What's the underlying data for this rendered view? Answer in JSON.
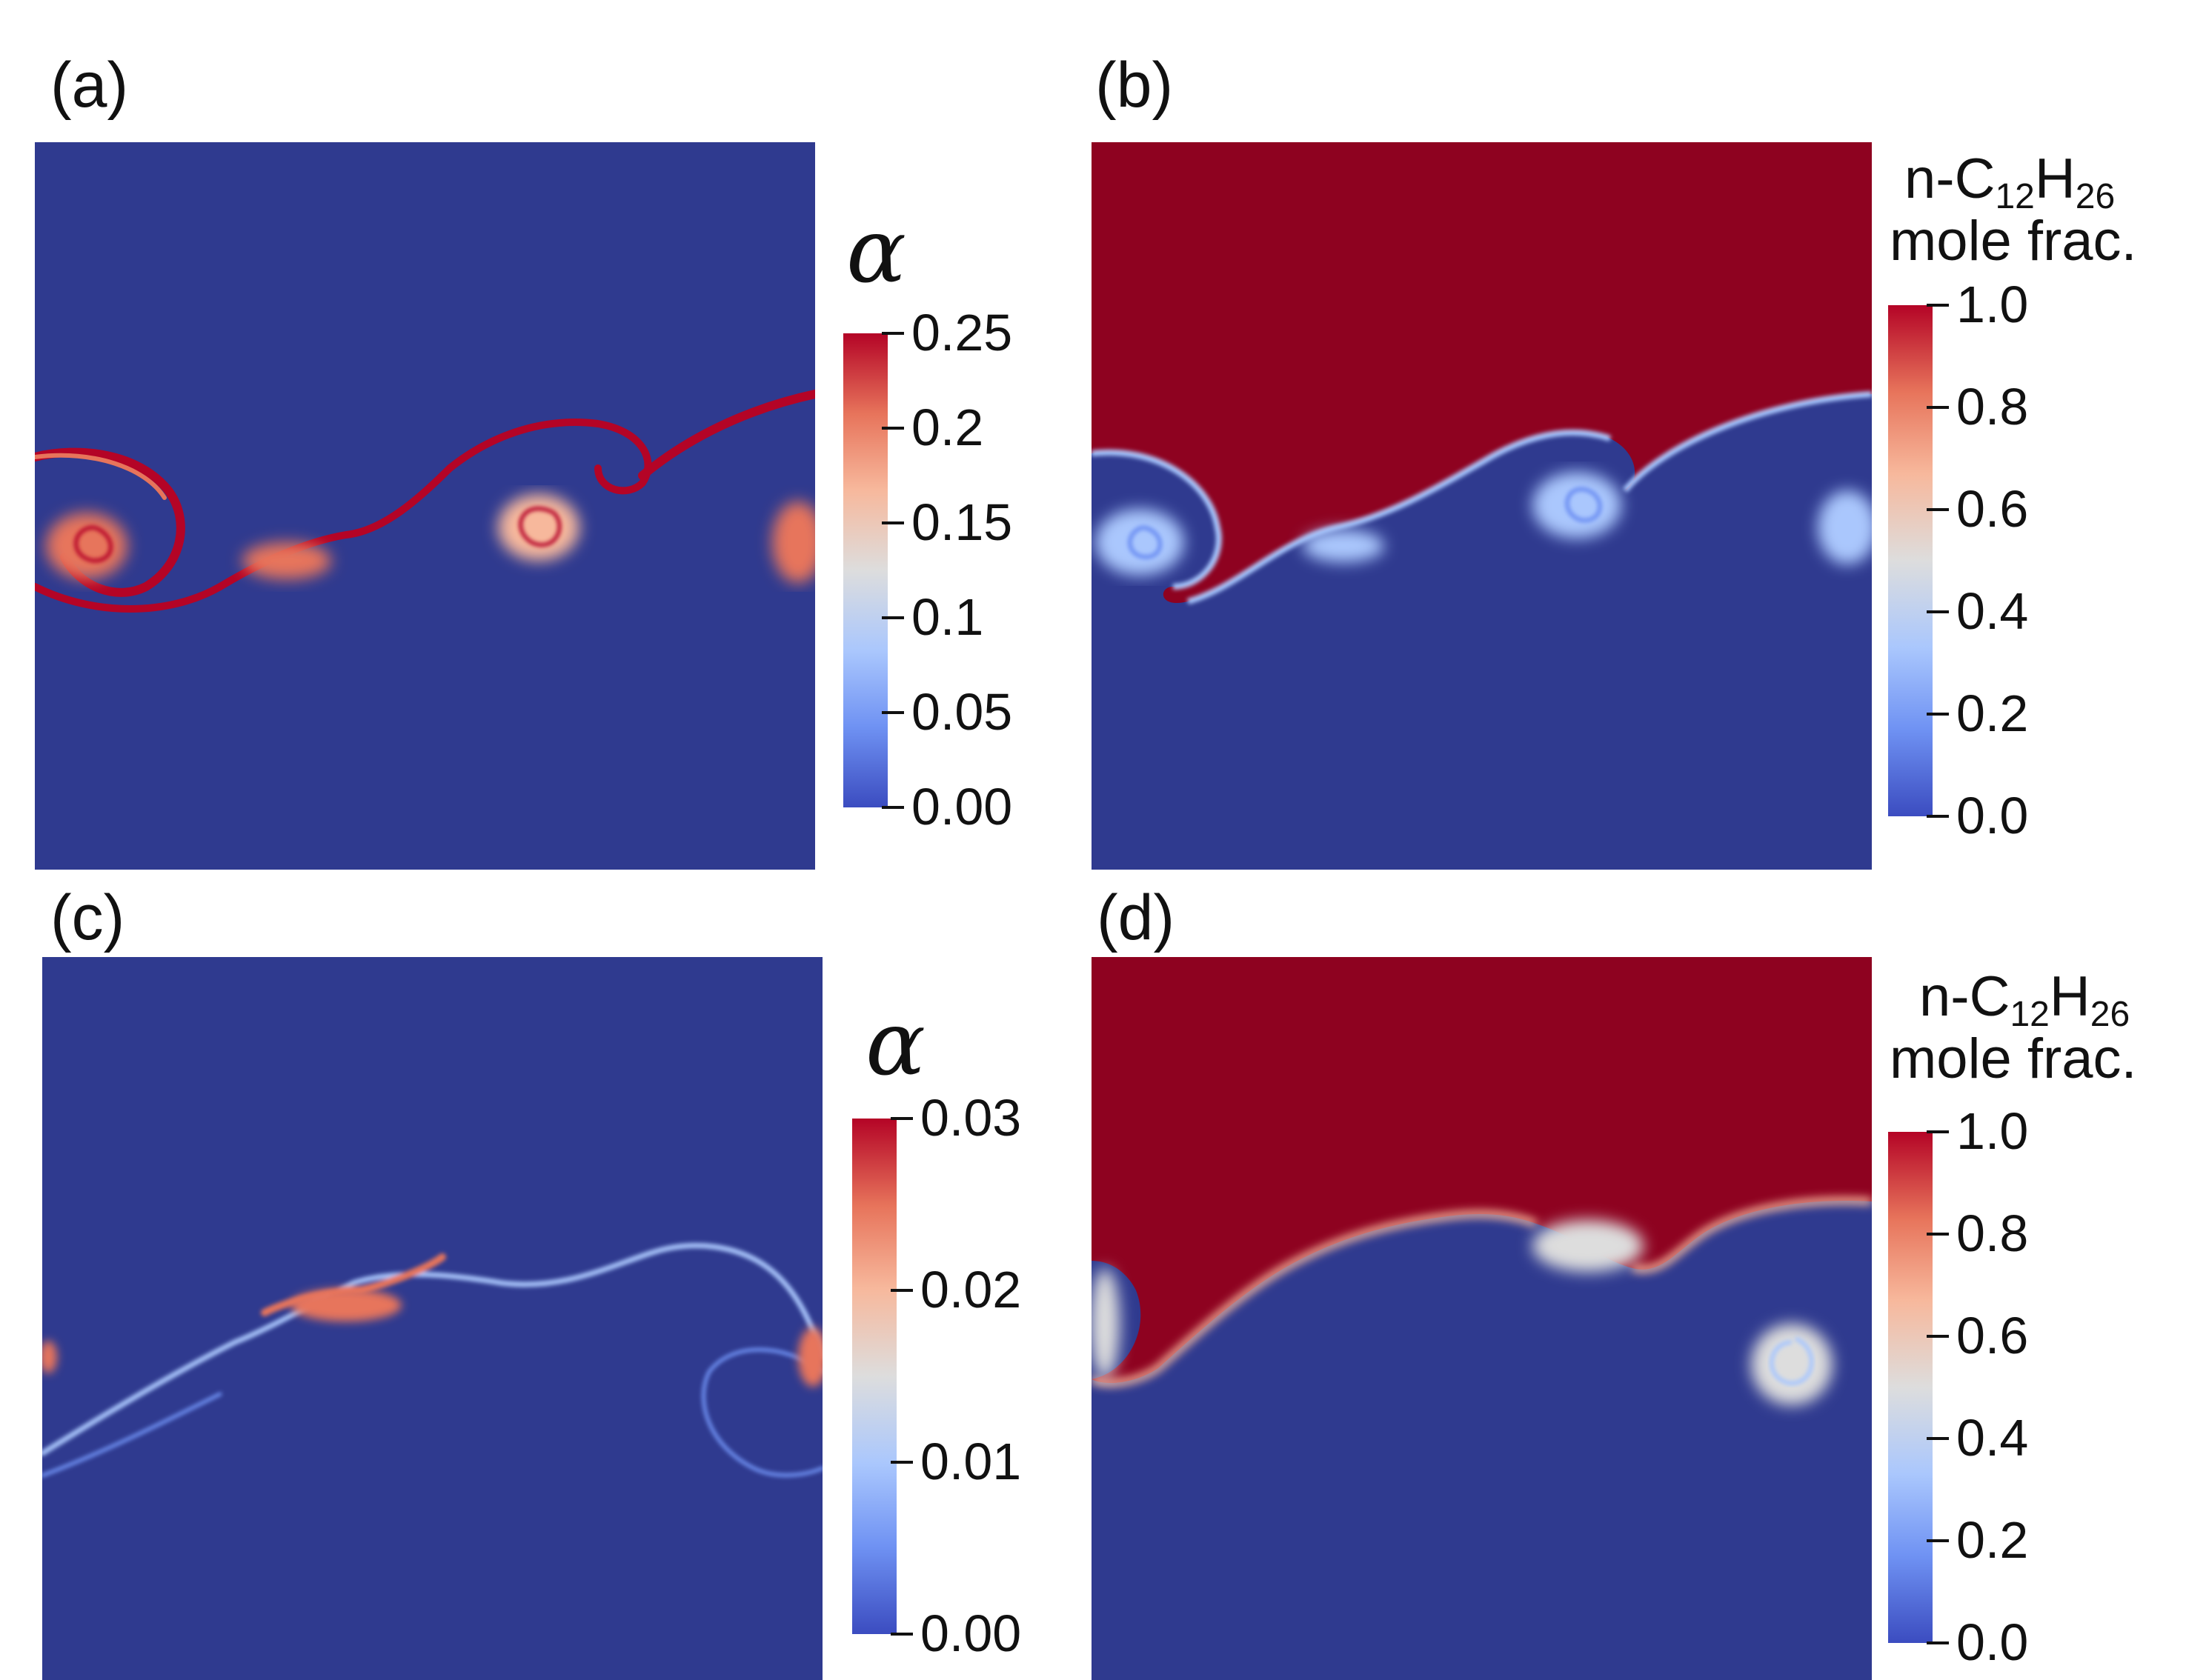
{
  "colors": {
    "field_low": "#2f3a8f",
    "field_high": "#8e0220",
    "cmap": [
      "#3b4cc0",
      "#6f92f3",
      "#aac7fd",
      "#dddddd",
      "#f7b89c",
      "#e7745b",
      "#b40426"
    ]
  },
  "panels": {
    "a": {
      "label": "(a)",
      "colorbar": {
        "title": "α",
        "ticks": [
          "0.25",
          "0.2",
          "0.15",
          "0.1",
          "0.05",
          "0.00"
        ]
      }
    },
    "b": {
      "label": "(b)",
      "colorbar": {
        "title_line1_prefix": "n-C",
        "title_line1_sub1": "12",
        "title_line1_mid": "H",
        "title_line1_sub2": "26",
        "title_line2": "mole frac.",
        "ticks": [
          "1.0",
          "0.8",
          "0.6",
          "0.4",
          "0.2",
          "0.0"
        ]
      }
    },
    "c": {
      "label": "(c)",
      "colorbar": {
        "title": "α",
        "ticks": [
          "0.03",
          "0.02",
          "0.01",
          "0.00"
        ]
      }
    },
    "d": {
      "label": "(d)",
      "colorbar": {
        "title_line1_prefix": "n-C",
        "title_line1_sub1": "12",
        "title_line1_mid": "H",
        "title_line1_sub2": "26",
        "title_line2": "mole frac.",
        "ticks": [
          "1.0",
          "0.8",
          "0.6",
          "0.4",
          "0.2",
          "0.0"
        ]
      }
    }
  }
}
